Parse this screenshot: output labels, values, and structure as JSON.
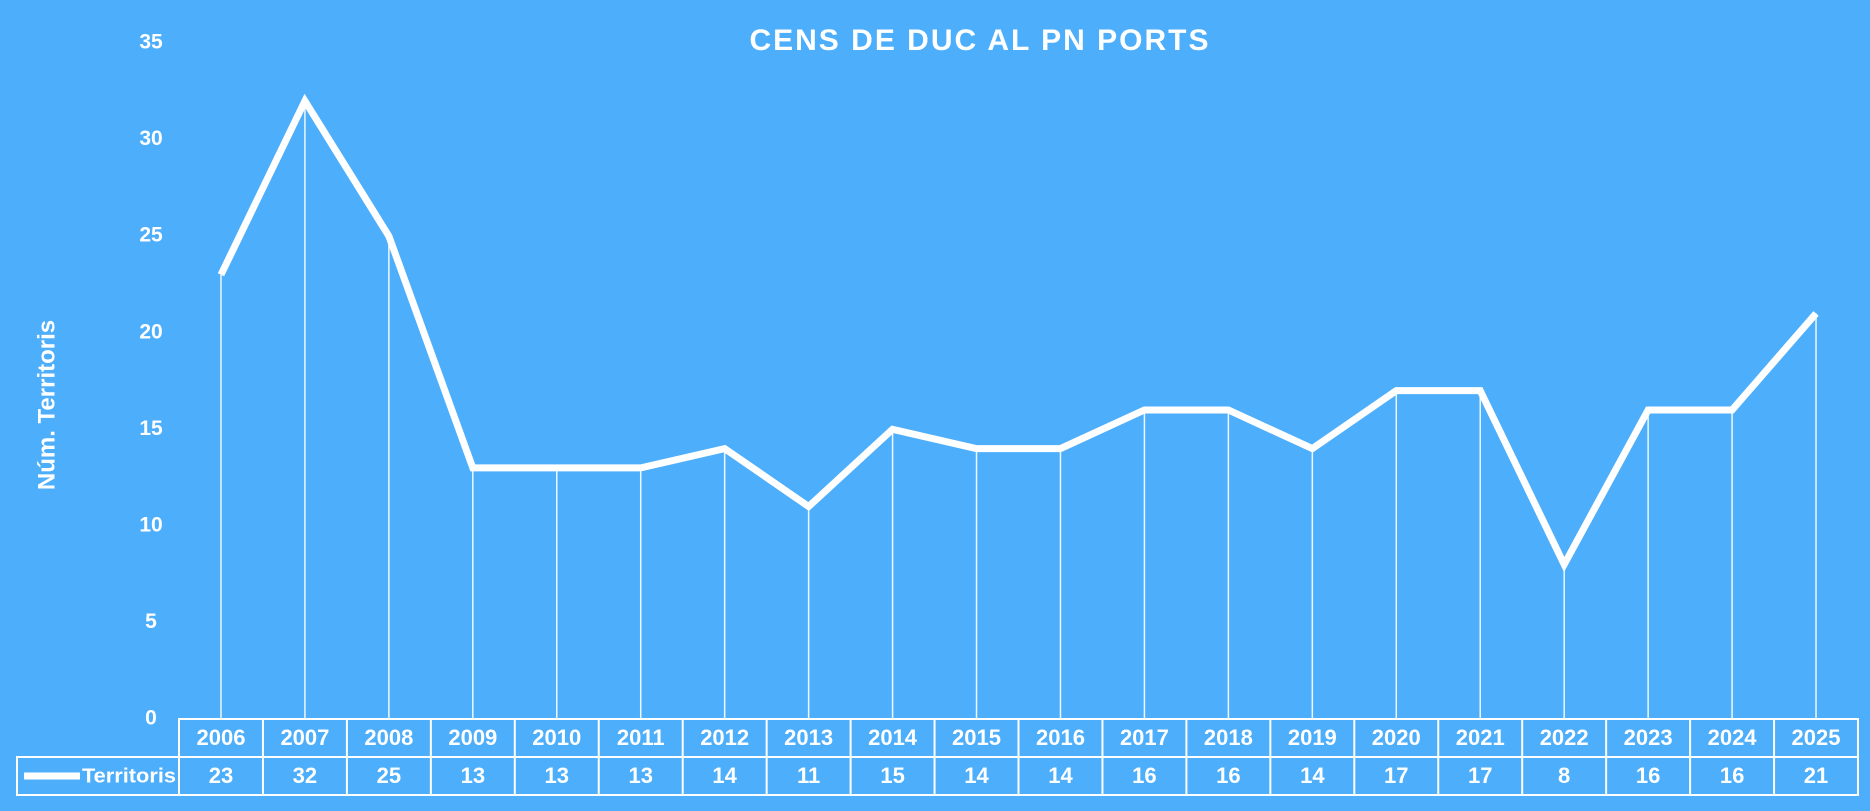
{
  "chart_data": {
    "type": "line",
    "title": "CENS DE DUC AL PN PORTS",
    "y_label": "Núm. Territoris",
    "categories": [
      "2006",
      "2007",
      "2008",
      "2009",
      "2010",
      "2011",
      "2012",
      "2013",
      "2014",
      "2015",
      "2016",
      "2017",
      "2018",
      "2019",
      "2020",
      "2021",
      "2022",
      "2023",
      "2024",
      "2025"
    ],
    "series": [
      {
        "name": "Territoris",
        "color": "#ffffff",
        "values": [
          23,
          32,
          25,
          13,
          13,
          13,
          14,
          11,
          15,
          14,
          14,
          16,
          16,
          14,
          17,
          17,
          8,
          16,
          16,
          21
        ]
      }
    ],
    "ylim": [
      0,
      35
    ],
    "yticks": [
      0,
      5,
      10,
      15,
      20,
      25,
      30,
      35
    ],
    "grid": false,
    "drop_lines": true,
    "data_table": true
  }
}
